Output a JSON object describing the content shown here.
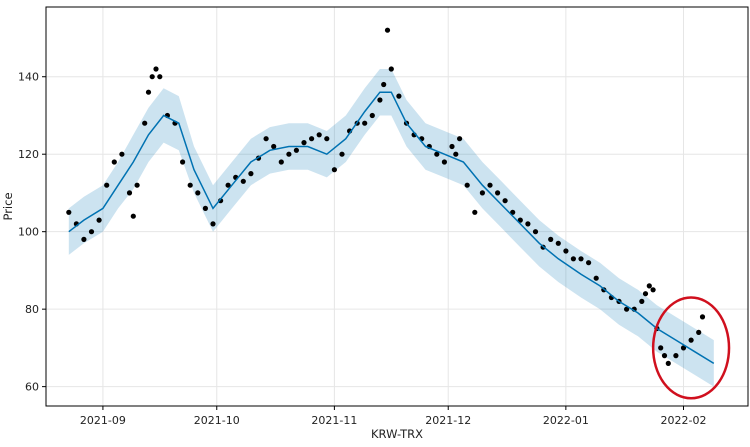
{
  "colors": {
    "observed": "#000000",
    "forecast_line": "#0072B2",
    "interval_fill": "#0072B2",
    "grid": "#e6e6e6",
    "annotation": "#d0101e"
  },
  "chart_data": {
    "type": "line",
    "xlabel": "KRW-TRX",
    "ylabel": "Price",
    "x_range": [
      "2021-08-17",
      "2022-02-18"
    ],
    "ylim": [
      55,
      158
    ],
    "x_ticks": [
      "2021-09-01",
      "2021-10-01",
      "2021-11-01",
      "2021-12-01",
      "2022-01-01",
      "2022-02-01"
    ],
    "x_tick_labels": [
      "2021-09",
      "2021-10",
      "2021-11",
      "2021-12",
      "2022-01",
      "2022-02"
    ],
    "y_ticks": [
      60,
      80,
      100,
      120,
      140
    ],
    "grid": true,
    "series": [
      {
        "kind": "observed_points",
        "x": [
          "2021-08-23",
          "2021-08-25",
          "2021-08-27",
          "2021-08-29",
          "2021-08-31",
          "2021-09-02",
          "2021-09-04",
          "2021-09-06",
          "2021-09-08",
          "2021-09-09",
          "2021-09-10",
          "2021-09-12",
          "2021-09-13",
          "2021-09-14",
          "2021-09-15",
          "2021-09-16",
          "2021-09-18",
          "2021-09-20",
          "2021-09-22",
          "2021-09-24",
          "2021-09-26",
          "2021-09-28",
          "2021-09-30",
          "2021-10-02",
          "2021-10-04",
          "2021-10-06",
          "2021-10-08",
          "2021-10-10",
          "2021-10-12",
          "2021-10-14",
          "2021-10-16",
          "2021-10-18",
          "2021-10-20",
          "2021-10-22",
          "2021-10-24",
          "2021-10-26",
          "2021-10-28",
          "2021-10-30",
          "2021-11-01",
          "2021-11-03",
          "2021-11-05",
          "2021-11-07",
          "2021-11-09",
          "2021-11-11",
          "2021-11-13",
          "2021-11-14",
          "2021-11-15",
          "2021-11-16",
          "2021-11-18",
          "2021-11-20",
          "2021-11-22",
          "2021-11-24",
          "2021-11-26",
          "2021-11-28",
          "2021-11-30",
          "2021-12-02",
          "2021-12-03",
          "2021-12-04",
          "2021-12-06",
          "2021-12-08",
          "2021-12-10",
          "2021-12-12",
          "2021-12-14",
          "2021-12-16",
          "2021-12-18",
          "2021-12-20",
          "2021-12-22",
          "2021-12-24",
          "2021-12-26",
          "2021-12-28",
          "2021-12-30",
          "2022-01-01",
          "2022-01-03",
          "2022-01-05",
          "2022-01-07",
          "2022-01-09",
          "2022-01-11",
          "2022-01-13",
          "2022-01-15",
          "2022-01-17",
          "2022-01-19",
          "2022-01-21",
          "2022-01-22",
          "2022-01-23",
          "2022-01-24",
          "2022-01-25",
          "2022-01-26",
          "2022-01-27",
          "2022-01-28",
          "2022-01-30",
          "2022-02-01",
          "2022-02-03",
          "2022-02-05",
          "2022-02-06"
        ],
        "y": [
          105,
          102,
          98,
          100,
          103,
          112,
          118,
          120,
          110,
          104,
          112,
          128,
          136,
          140,
          142,
          140,
          130,
          128,
          118,
          112,
          110,
          106,
          102,
          108,
          112,
          114,
          113,
          115,
          119,
          124,
          122,
          118,
          120,
          121,
          123,
          124,
          125,
          124,
          116,
          120,
          126,
          128,
          128,
          130,
          134,
          138,
          152,
          142,
          135,
          128,
          125,
          124,
          122,
          120,
          118,
          122,
          120,
          124,
          112,
          105,
          110,
          112,
          110,
          108,
          105,
          103,
          102,
          100,
          96,
          98,
          97,
          95,
          93,
          93,
          92,
          88,
          85,
          83,
          82,
          80,
          80,
          82,
          84,
          86,
          85,
          75,
          70,
          68,
          66,
          68,
          70,
          72,
          74,
          78
        ]
      },
      {
        "kind": "forecast_yhat",
        "x": [
          "2021-08-23",
          "2021-08-27",
          "2021-09-01",
          "2021-09-05",
          "2021-09-09",
          "2021-09-13",
          "2021-09-17",
          "2021-09-21",
          "2021-09-25",
          "2021-09-30",
          "2021-10-05",
          "2021-10-10",
          "2021-10-15",
          "2021-10-20",
          "2021-10-25",
          "2021-10-30",
          "2021-11-04",
          "2021-11-09",
          "2021-11-13",
          "2021-11-16",
          "2021-11-20",
          "2021-11-25",
          "2021-11-30",
          "2021-12-05",
          "2021-12-10",
          "2021-12-15",
          "2021-12-20",
          "2021-12-25",
          "2021-12-30",
          "2022-01-05",
          "2022-01-10",
          "2022-01-15",
          "2022-01-20",
          "2022-01-25",
          "2022-01-30",
          "2022-02-04",
          "2022-02-09"
        ],
        "y": [
          100,
          103,
          106,
          112,
          118,
          125,
          130,
          128,
          116,
          106,
          112,
          118,
          121,
          122,
          122,
          120,
          124,
          131,
          136,
          136,
          128,
          122,
          120,
          118,
          112,
          107,
          102,
          97,
          93,
          89,
          86,
          82,
          79,
          75,
          72,
          69,
          66
        ]
      },
      {
        "kind": "interval_lower",
        "x": [
          "2021-08-23",
          "2021-08-27",
          "2021-09-01",
          "2021-09-05",
          "2021-09-09",
          "2021-09-13",
          "2021-09-17",
          "2021-09-21",
          "2021-09-25",
          "2021-09-30",
          "2021-10-05",
          "2021-10-10",
          "2021-10-15",
          "2021-10-20",
          "2021-10-25",
          "2021-10-30",
          "2021-11-04",
          "2021-11-09",
          "2021-11-13",
          "2021-11-16",
          "2021-11-20",
          "2021-11-25",
          "2021-11-30",
          "2021-12-05",
          "2021-12-10",
          "2021-12-15",
          "2021-12-20",
          "2021-12-25",
          "2021-12-30",
          "2022-01-05",
          "2022-01-10",
          "2022-01-15",
          "2022-01-20",
          "2022-01-25",
          "2022-01-30",
          "2022-02-04",
          "2022-02-09"
        ],
        "y": [
          94,
          97,
          100,
          106,
          111,
          118,
          123,
          121,
          110,
          100,
          106,
          112,
          115,
          116,
          116,
          114,
          118,
          125,
          130,
          130,
          122,
          116,
          114,
          112,
          106,
          101,
          96,
          91,
          87,
          83,
          80,
          76,
          73,
          69,
          66,
          63,
          60
        ]
      },
      {
        "kind": "interval_upper",
        "x": [
          "2021-08-23",
          "2021-08-27",
          "2021-09-01",
          "2021-09-05",
          "2021-09-09",
          "2021-09-13",
          "2021-09-17",
          "2021-09-21",
          "2021-09-25",
          "2021-09-30",
          "2021-10-05",
          "2021-10-10",
          "2021-10-15",
          "2021-10-20",
          "2021-10-25",
          "2021-10-30",
          "2021-11-04",
          "2021-11-09",
          "2021-11-13",
          "2021-11-16",
          "2021-11-20",
          "2021-11-25",
          "2021-11-30",
          "2021-12-05",
          "2021-12-10",
          "2021-12-15",
          "2021-12-20",
          "2021-12-25",
          "2021-12-30",
          "2022-01-05",
          "2022-01-10",
          "2022-01-15",
          "2022-01-20",
          "2022-01-25",
          "2022-01-30",
          "2022-02-04",
          "2022-02-09"
        ],
        "y": [
          106,
          109,
          112,
          118,
          125,
          132,
          137,
          135,
          122,
          112,
          118,
          124,
          127,
          128,
          128,
          126,
          130,
          137,
          142,
          142,
          134,
          128,
          126,
          124,
          118,
          113,
          108,
          103,
          99,
          95,
          92,
          88,
          85,
          81,
          78,
          75,
          72
        ]
      }
    ],
    "annotation": {
      "kind": "circle",
      "center_x": "2022-02-03",
      "center_y": 70,
      "radius_x_days": 10,
      "radius_y": 13
    }
  }
}
